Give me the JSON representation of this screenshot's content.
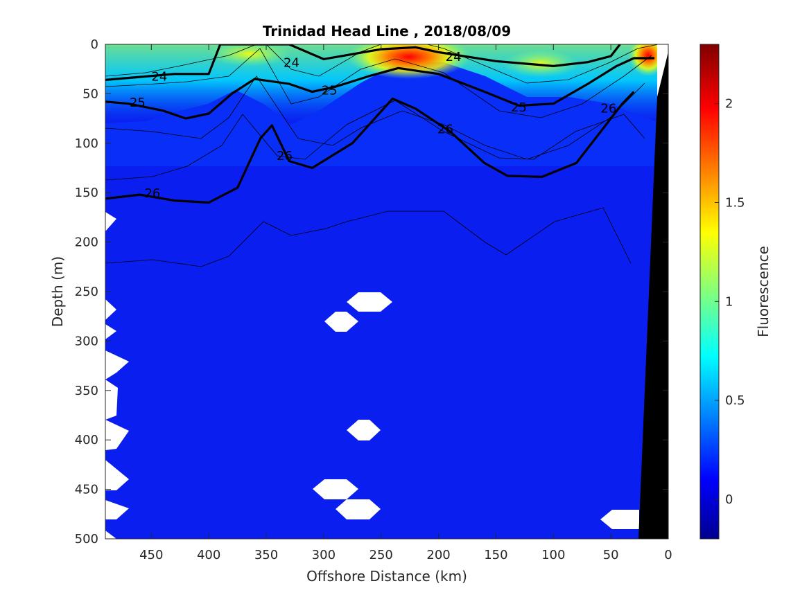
{
  "chart_data": {
    "type": "heatmap",
    "title": "Trinidad Head Line , 2018/08/09",
    "xlabel": "Offshore Distance (km)",
    "ylabel": "Depth (m)",
    "colorbar_label": "Fluorescence",
    "xlim": [
      490,
      0
    ],
    "ylim": [
      0,
      500
    ],
    "x_reversed": true,
    "y_reversed": true,
    "xticks": [
      450,
      400,
      350,
      300,
      250,
      200,
      150,
      100,
      50,
      0
    ],
    "yticks": [
      0,
      50,
      100,
      150,
      200,
      250,
      300,
      350,
      400,
      450,
      500
    ],
    "clim": [
      -0.2,
      2.3
    ],
    "cticks": [
      0,
      0.5,
      1,
      1.5,
      2
    ],
    "colormap": "jet",
    "grid": false,
    "surface_max": {
      "x": 230,
      "depth": 15,
      "value": 2.2
    },
    "contours": [
      {
        "level": 24,
        "bold": true,
        "points": [
          [
            490,
            36
          ],
          [
            460,
            33
          ],
          [
            430,
            30
          ],
          [
            400,
            30
          ],
          [
            390,
            0
          ],
          [
            330,
            0
          ],
          [
            300,
            15
          ],
          [
            250,
            5
          ],
          [
            220,
            3
          ],
          [
            200,
            8
          ],
          [
            150,
            17
          ],
          [
            100,
            22
          ],
          [
            70,
            18
          ],
          [
            50,
            12
          ],
          [
            42,
            0
          ]
        ]
      },
      {
        "level": 25,
        "bold": true,
        "points": [
          [
            490,
            58
          ],
          [
            470,
            60
          ],
          [
            440,
            67
          ],
          [
            420,
            75
          ],
          [
            400,
            70
          ],
          [
            380,
            50
          ],
          [
            360,
            35
          ],
          [
            330,
            40
          ],
          [
            310,
            48
          ],
          [
            290,
            43
          ],
          [
            260,
            32
          ],
          [
            235,
            24
          ],
          [
            200,
            30
          ],
          [
            160,
            48
          ],
          [
            130,
            62
          ],
          [
            100,
            60
          ],
          [
            70,
            40
          ],
          [
            45,
            22
          ],
          [
            30,
            14
          ],
          [
            12,
            14
          ]
        ]
      },
      {
        "level": 26,
        "bold": true,
        "points": [
          [
            490,
            156
          ],
          [
            460,
            152
          ],
          [
            430,
            158
          ],
          [
            400,
            160
          ],
          [
            375,
            145
          ],
          [
            355,
            95
          ],
          [
            345,
            82
          ],
          [
            330,
            118
          ],
          [
            310,
            125
          ],
          [
            275,
            100
          ],
          [
            240,
            55
          ],
          [
            220,
            65
          ],
          [
            190,
            88
          ],
          [
            160,
            120
          ],
          [
            140,
            133
          ],
          [
            110,
            134
          ],
          [
            80,
            120
          ],
          [
            60,
            90
          ],
          [
            40,
            60
          ],
          [
            30,
            48
          ]
        ]
      }
    ],
    "labels": [
      {
        "text": "24",
        "x": 443,
        "depth": 32
      },
      {
        "text": "24",
        "x": 328,
        "depth": 18
      },
      {
        "text": "24",
        "x": 187,
        "depth": 12
      },
      {
        "text": "25",
        "x": 462,
        "depth": 58
      },
      {
        "text": "25",
        "x": 295,
        "depth": 46
      },
      {
        "text": "25",
        "x": 130,
        "depth": 63
      },
      {
        "text": "26",
        "x": 449,
        "depth": 150
      },
      {
        "text": "26",
        "x": 334,
        "depth": 112
      },
      {
        "text": "26",
        "x": 194,
        "depth": 85
      },
      {
        "text": "26",
        "x": 52,
        "depth": 64
      }
    ]
  }
}
